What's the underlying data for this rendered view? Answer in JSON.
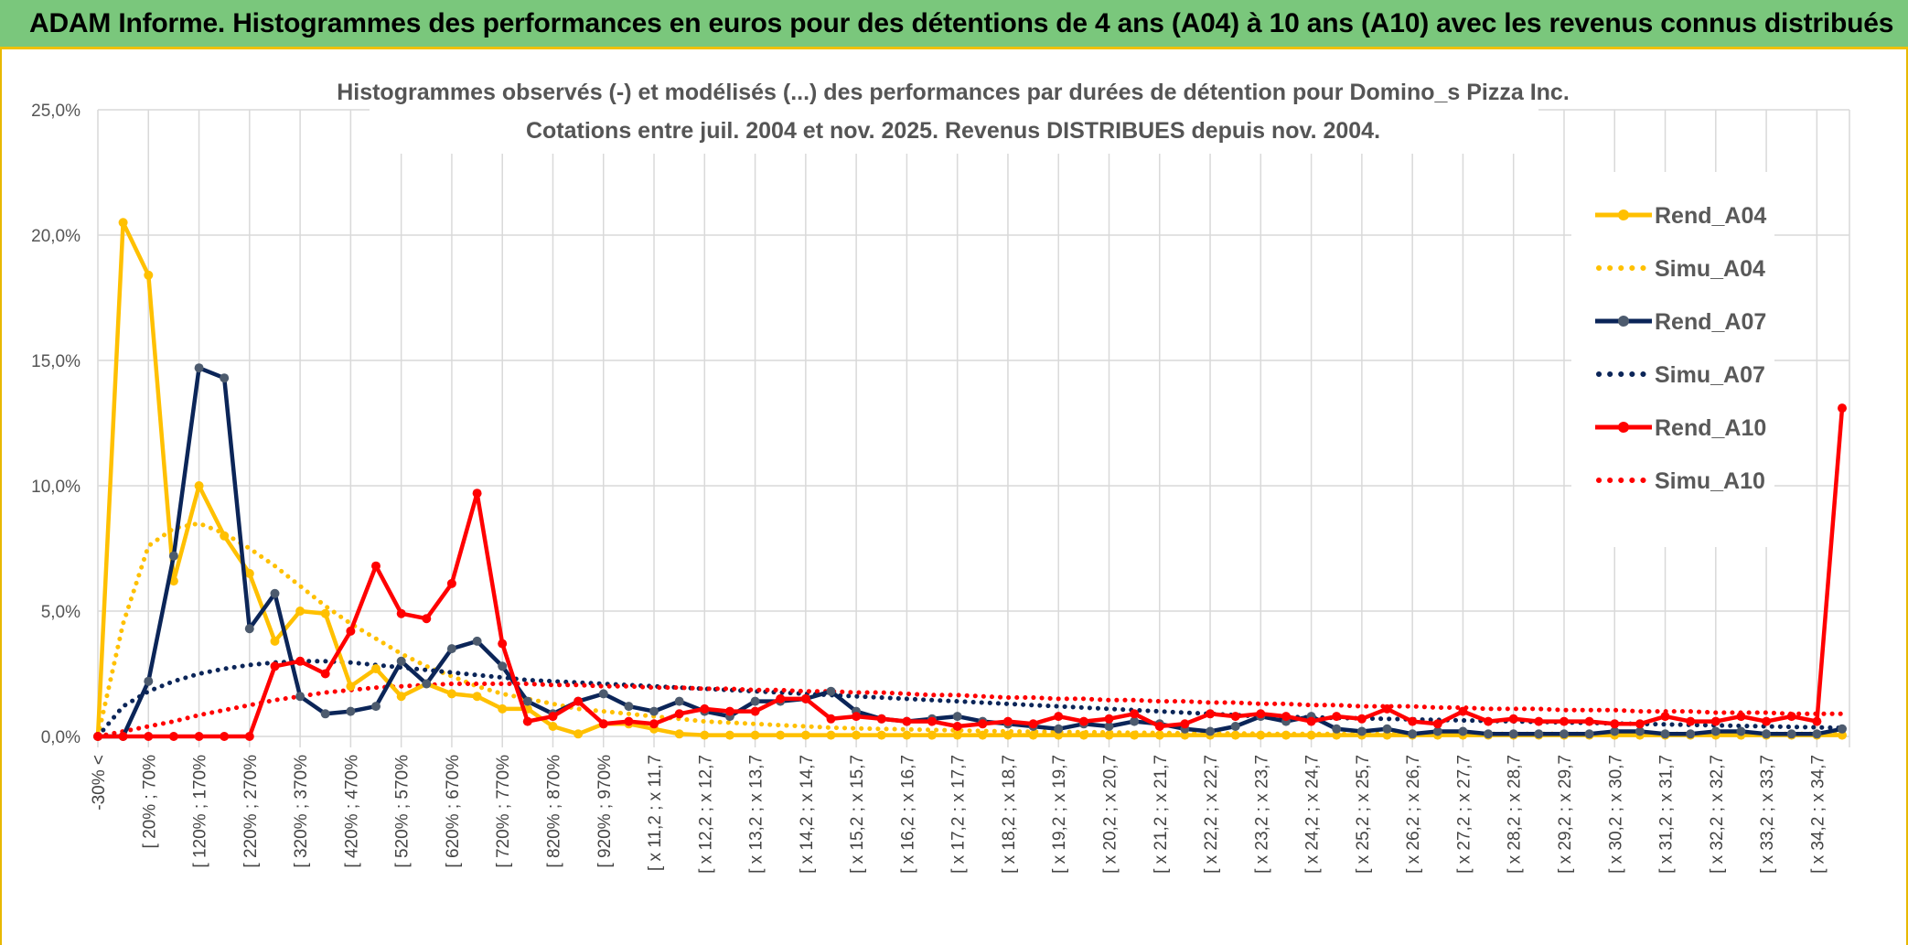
{
  "header": {
    "title": "ADAM Informe. Histogrammes des performances en euros pour des détentions de 4 ans (A04) à 10 ans (A10) avec les revenus connus distribués"
  },
  "colors": {
    "banner": "#7ac77c",
    "banner_border": "#f0c000",
    "a04": "#ffc000",
    "a07": "#0b2558",
    "a07_marker": "#4d5b6e",
    "a10": "#ff0000",
    "grid": "#d9d9d9"
  },
  "chart_data": {
    "type": "line",
    "title": "Histogrammes observés (-) et modélisés (...) des performances par durées de détention pour Domino_s Pizza Inc.",
    "subtitle": "Cotations entre juil. 2004 et nov. 2025. Revenus DISTRIBUES depuis nov. 2004.",
    "y_ticks": [
      "0,0%",
      "5,0%",
      "10,0%",
      "15,0%",
      "20,0%",
      "25,0%"
    ],
    "ylim": [
      0,
      25
    ],
    "x_tick_labels": [
      "-30% <",
      "[ 20% ; 70%",
      "[ 120% ; 170%",
      "[ 220% ; 270%",
      "[ 320% ; 370%",
      "[ 420% ; 470%",
      "[ 520% ; 570%",
      "[ 620% ; 670%",
      "[ 720% ; 770%",
      "[ 820% ; 870%",
      "[ 920% ; 970%",
      "[ x 11,2 ; x 11,7",
      "[ x 12,2 ; x 12,7",
      "[ x 13,2 ; x 13,7",
      "[ x 14,2 ; x 14,7",
      "[ x 15,2 ; x 15,7",
      "[ x 16,2 ; x 16,7",
      "[ x 17,2 ; x 17,7",
      "[ x 18,2 ; x 18,7",
      "[ x 19,2 ; x 19,7",
      "[ x 20,2 ; x 20,7",
      "[ x 21,2 ; x 21,7",
      "[ x 22,2 ; x 22,7",
      "[ x 23,2 ; x 23,7",
      "[ x 24,2 ; x 24,7",
      "[ x 25,2 ; x 25,7",
      "[ x 26,2 ; x 26,7",
      "[ x 27,2 ; x 27,7",
      "[ x 28,2 ; x 28,7",
      "[ x 29,2 ; x 29,7",
      "[ x 30,2 ; x 30,7",
      "[ x 31,2 ; x 31,7",
      "[ x 32,2 ; x 32,7",
      "[ x 33,2 ; x 33,7",
      "[ x 34,2 ; x 34,7"
    ],
    "legend_position": "right",
    "grid": true,
    "series": [
      {
        "name": "Rend_A04",
        "style": "solid",
        "color": "#ffc000",
        "values": [
          0,
          20.5,
          18.4,
          6.2,
          10.0,
          8.0,
          6.5,
          3.8,
          5.0,
          4.9,
          2.0,
          2.7,
          1.6,
          2.1,
          1.7,
          1.6,
          1.1,
          1.1,
          0.4,
          0.1,
          0.5,
          0.5,
          0.3,
          0.1,
          0.05,
          0.05,
          0.05,
          0.05,
          0.05,
          0.05,
          0.05,
          0.05,
          0.05,
          0.05,
          0.05,
          0.05,
          0.05,
          0.05,
          0.05,
          0.05,
          0.05,
          0.05,
          0.05,
          0.05,
          0.05,
          0.05,
          0.05,
          0.05,
          0.05,
          0.05,
          0.05,
          0.05,
          0.05,
          0.05,
          0.05,
          0.05,
          0.05,
          0.05,
          0.05,
          0.05,
          0.05,
          0.05,
          0.05,
          0.05,
          0.05,
          0.05,
          0.05,
          0.05,
          0.05,
          0.05
        ]
      },
      {
        "name": "Simu_A04",
        "style": "dotted",
        "color": "#ffc000",
        "values": [
          0,
          4.5,
          7.6,
          8.3,
          8.5,
          8.1,
          7.5,
          6.8,
          6.0,
          5.2,
          4.5,
          3.9,
          3.3,
          2.8,
          2.4,
          2.0,
          1.7,
          1.5,
          1.3,
          1.1,
          1.0,
          0.9,
          0.8,
          0.7,
          0.6,
          0.55,
          0.5,
          0.45,
          0.4,
          0.35,
          0.32,
          0.3,
          0.28,
          0.26,
          0.24,
          0.22,
          0.2,
          0.19,
          0.18,
          0.17,
          0.16,
          0.15,
          0.14,
          0.13,
          0.12,
          0.12,
          0.11,
          0.1,
          0.1,
          0.1,
          0.1,
          0.1,
          0.1,
          0.1,
          0.1,
          0.1,
          0.1,
          0.1,
          0.1,
          0.1,
          0.1,
          0.1,
          0.1,
          0.1,
          0.1,
          0.1,
          0.1,
          0.1,
          0.1,
          0.1
        ]
      },
      {
        "name": "Rend_A07",
        "style": "solid",
        "color": "#0b2558",
        "values": [
          0,
          0,
          2.2,
          7.2,
          14.7,
          14.3,
          4.3,
          5.7,
          1.6,
          0.9,
          1.0,
          1.2,
          3.0,
          2.1,
          3.5,
          3.8,
          2.8,
          1.4,
          0.9,
          1.4,
          1.7,
          1.2,
          1.0,
          1.4,
          1.0,
          0.8,
          1.4,
          1.4,
          1.5,
          1.8,
          1.0,
          0.7,
          0.6,
          0.7,
          0.8,
          0.6,
          0.5,
          0.4,
          0.3,
          0.5,
          0.4,
          0.6,
          0.5,
          0.3,
          0.2,
          0.4,
          0.8,
          0.6,
          0.8,
          0.3,
          0.2,
          0.3,
          0.1,
          0.2,
          0.2,
          0.1,
          0.1,
          0.1,
          0.1,
          0.1,
          0.2,
          0.2,
          0.1,
          0.1,
          0.2,
          0.2,
          0.1,
          0.1,
          0.1,
          0.3
        ]
      },
      {
        "name": "Simu_A07",
        "style": "dotted",
        "color": "#0b2558",
        "values": [
          0,
          1.2,
          1.8,
          2.2,
          2.5,
          2.7,
          2.85,
          2.95,
          3.0,
          3.0,
          2.95,
          2.85,
          2.75,
          2.65,
          2.55,
          2.45,
          2.35,
          2.25,
          2.2,
          2.15,
          2.1,
          2.05,
          2.0,
          1.95,
          1.9,
          1.85,
          1.8,
          1.75,
          1.7,
          1.65,
          1.6,
          1.55,
          1.5,
          1.45,
          1.4,
          1.35,
          1.3,
          1.25,
          1.2,
          1.15,
          1.1,
          1.05,
          1.0,
          0.95,
          0.9,
          0.85,
          0.8,
          0.78,
          0.76,
          0.74,
          0.72,
          0.7,
          0.68,
          0.66,
          0.64,
          0.62,
          0.6,
          0.58,
          0.56,
          0.54,
          0.52,
          0.5,
          0.48,
          0.46,
          0.44,
          0.42,
          0.4,
          0.38,
          0.36,
          0.34
        ]
      },
      {
        "name": "Rend_A10",
        "style": "solid",
        "color": "#ff0000",
        "values": [
          0,
          0,
          0,
          0,
          0,
          0,
          0,
          2.8,
          3.0,
          2.5,
          4.2,
          6.8,
          4.9,
          4.7,
          6.1,
          9.7,
          3.7,
          0.6,
          0.8,
          1.4,
          0.5,
          0.6,
          0.5,
          0.9,
          1.1,
          1.0,
          1.0,
          1.5,
          1.5,
          0.7,
          0.8,
          0.7,
          0.6,
          0.6,
          0.4,
          0.5,
          0.6,
          0.5,
          0.8,
          0.6,
          0.7,
          0.9,
          0.4,
          0.5,
          0.9,
          0.8,
          0.9,
          0.8,
          0.6,
          0.8,
          0.7,
          1.1,
          0.6,
          0.5,
          1.0,
          0.6,
          0.7,
          0.6,
          0.6,
          0.6,
          0.5,
          0.5,
          0.8,
          0.6,
          0.6,
          0.8,
          0.6,
          0.8,
          0.6,
          13.1
        ]
      },
      {
        "name": "Simu_A10",
        "style": "dotted",
        "color": "#ff0000",
        "values": [
          0,
          0.2,
          0.4,
          0.6,
          0.85,
          1.05,
          1.25,
          1.45,
          1.6,
          1.75,
          1.85,
          1.95,
          2.0,
          2.05,
          2.1,
          2.1,
          2.1,
          2.1,
          2.05,
          2.05,
          2.0,
          2.0,
          1.95,
          1.95,
          1.9,
          1.9,
          1.85,
          1.85,
          1.8,
          1.8,
          1.75,
          1.75,
          1.7,
          1.65,
          1.65,
          1.6,
          1.55,
          1.55,
          1.5,
          1.5,
          1.45,
          1.45,
          1.4,
          1.4,
          1.35,
          1.35,
          1.3,
          1.3,
          1.25,
          1.25,
          1.2,
          1.2,
          1.2,
          1.15,
          1.15,
          1.1,
          1.1,
          1.1,
          1.05,
          1.05,
          1.05,
          1.0,
          1.0,
          1.0,
          0.95,
          0.95,
          0.95,
          0.9,
          0.9,
          0.9
        ]
      }
    ]
  }
}
